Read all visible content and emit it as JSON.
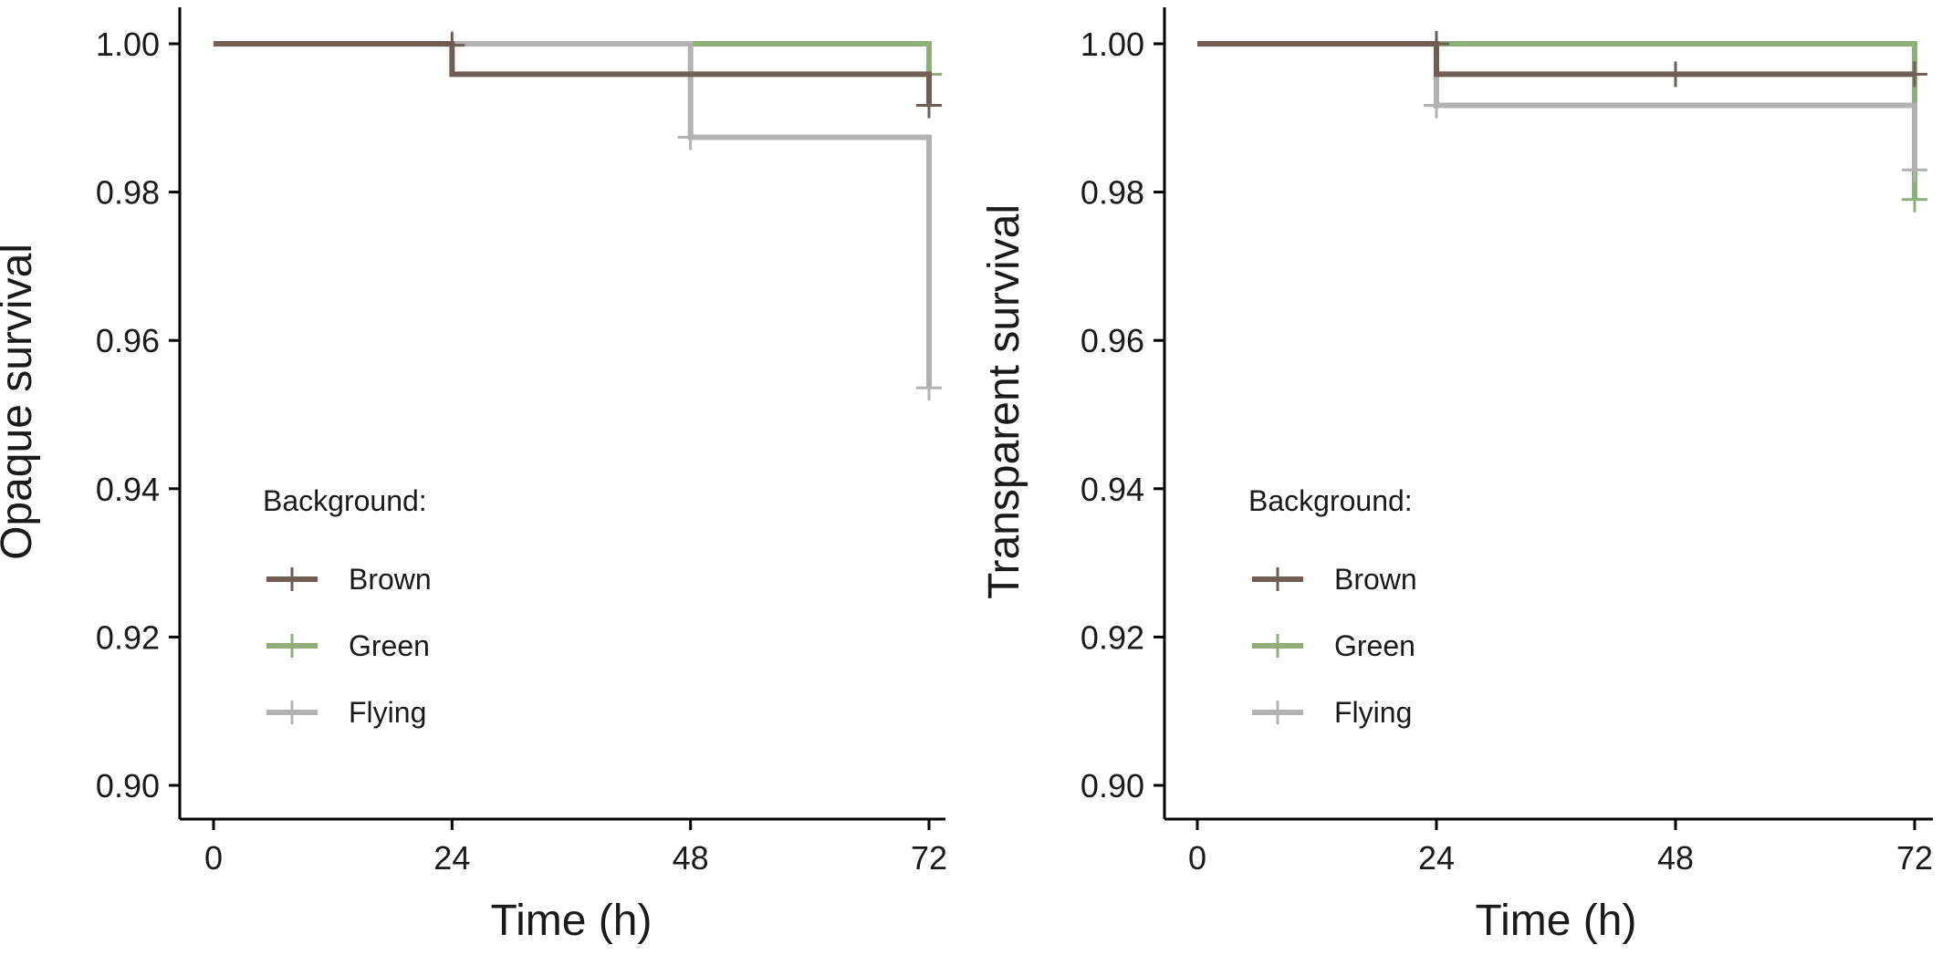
{
  "colors": {
    "Brown": "#6e5e55",
    "Green": "#8fae7a",
    "Flying": "#b2b2b2"
  },
  "chart_data": [
    {
      "type": "line",
      "subtype": "kaplan-meier-step",
      "xlabel": "Time (h)",
      "ylabel": "Opaque survival",
      "xlim": [
        0,
        72
      ],
      "ylim": [
        0.9,
        1.0
      ],
      "x_ticks": [
        0,
        24,
        48,
        72
      ],
      "y_ticks": [
        0.9,
        0.92,
        0.94,
        0.96,
        0.98,
        1.0
      ],
      "y_tick_labels": [
        "0.90",
        "0.92",
        "0.94",
        "0.96",
        "0.98",
        "1.00"
      ],
      "grid": false,
      "legend": {
        "title": "Background:",
        "position": "bottom-left",
        "entries": [
          "Brown",
          "Green",
          "Flying"
        ]
      },
      "series": [
        {
          "name": "Brown",
          "steps": [
            [
              0,
              1.0
            ],
            [
              24,
              0.9959
            ],
            [
              72,
              0.9917
            ]
          ],
          "censored": [
            [
              24,
              0.9998
            ],
            [
              72,
              0.9917
            ]
          ]
        },
        {
          "name": "Green",
          "steps": [
            [
              0,
              1.0
            ],
            [
              72,
              0.9959
            ]
          ],
          "censored": [
            [
              72,
              0.9959
            ]
          ]
        },
        {
          "name": "Flying",
          "steps": [
            [
              0,
              1.0
            ],
            [
              48,
              0.9874
            ],
            [
              72,
              0.9536
            ]
          ],
          "censored": [
            [
              24,
              1.0
            ],
            [
              48,
              0.9874
            ],
            [
              72,
              0.9536
            ]
          ]
        }
      ]
    },
    {
      "type": "line",
      "subtype": "kaplan-meier-step",
      "xlabel": "Time (h)",
      "ylabel": "Transparent survival",
      "xlim": [
        0,
        72
      ],
      "ylim": [
        0.9,
        1.0
      ],
      "x_ticks": [
        0,
        24,
        48,
        72
      ],
      "y_ticks": [
        0.9,
        0.92,
        0.94,
        0.96,
        0.98,
        1.0
      ],
      "y_tick_labels": [
        "0.90",
        "0.92",
        "0.94",
        "0.96",
        "0.98",
        "1.00"
      ],
      "grid": false,
      "legend": {
        "title": "Background:",
        "position": "bottom-left",
        "entries": [
          "Brown",
          "Green",
          "Flying"
        ]
      },
      "series": [
        {
          "name": "Brown",
          "steps": [
            [
              0,
              1.0
            ],
            [
              24,
              0.9959
            ],
            [
              72,
              0.9959
            ]
          ],
          "censored": [
            [
              24,
              1.0
            ],
            [
              48,
              0.9959
            ],
            [
              72,
              0.9959
            ]
          ]
        },
        {
          "name": "Green",
          "steps": [
            [
              0,
              1.0
            ],
            [
              72,
              0.979
            ]
          ],
          "censored": [
            [
              72,
              0.979
            ]
          ]
        },
        {
          "name": "Flying",
          "steps": [
            [
              0,
              1.0
            ],
            [
              24,
              0.9917
            ],
            [
              72,
              0.983
            ]
          ],
          "censored": [
            [
              24,
              0.9917
            ],
            [
              72,
              0.983
            ]
          ]
        }
      ]
    }
  ]
}
